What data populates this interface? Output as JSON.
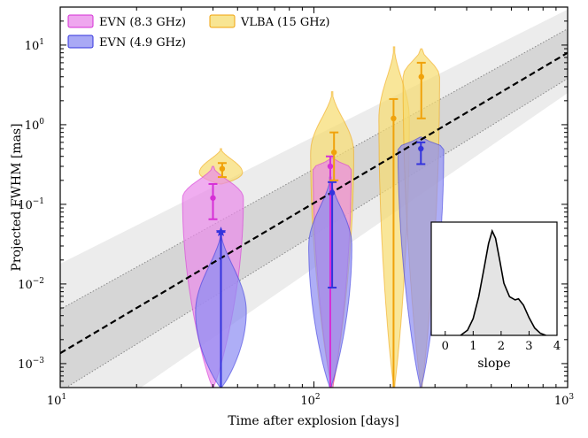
{
  "chart_data": {
    "type": "violin-scatter",
    "xlabel": "Time after explosion [days]",
    "ylabel": "Projected FWHM [mas]",
    "xscale": "log",
    "yscale": "log",
    "xlim": [
      10,
      1000
    ],
    "ylim": [
      0.0005,
      30
    ],
    "xticks": [
      {
        "value": 10,
        "base": "10",
        "exp": "1"
      },
      {
        "value": 100,
        "base": "10",
        "exp": "2"
      },
      {
        "value": 1000,
        "base": "10",
        "exp": "3"
      }
    ],
    "yticks": [
      {
        "value": 0.001,
        "base": "10",
        "exp": "−3"
      },
      {
        "value": 0.01,
        "base": "10",
        "exp": "−2"
      },
      {
        "value": 0.1,
        "base": "10",
        "exp": "−1"
      },
      {
        "value": 1,
        "base": "10",
        "exp": "0"
      },
      {
        "value": 10,
        "base": "10",
        "exp": "1"
      }
    ],
    "legend": {
      "placement": "top-left",
      "entries": [
        {
          "label": "EVN (8.3 GHz)",
          "series": "evn83"
        },
        {
          "label": "EVN (4.9 GHz)",
          "series": "evn49"
        },
        {
          "label": "VLBA (15 GHz)",
          "series": "vlba"
        }
      ]
    },
    "colors": {
      "evn83": "#d62fd6",
      "evn83_fill": "#e98ae9",
      "evn49": "#3333dd",
      "evn49_fill": "#8c8cf2",
      "vlba": "#f0a20a",
      "vlba_fill": "#f6dc6e",
      "fit": "#000000",
      "band_outer": "#ececec",
      "band_inner": "#d6d6d6",
      "band_edge": "#8a8a8a"
    },
    "fit": {
      "model": "power-law",
      "slope": 1.77,
      "points": [
        {
          "x": 10,
          "y": 0.00135
        },
        {
          "x": 1000,
          "y": 8.0
        }
      ],
      "band_inner": {
        "low": [
          {
            "x": 10,
            "y": 0.00045
          },
          {
            "x": 1000,
            "y": 3.8
          }
        ],
        "high": [
          {
            "x": 10,
            "y": 0.0048
          },
          {
            "x": 1000,
            "y": 16.0
          }
        ]
      },
      "band_outer": {
        "low": [
          {
            "x": 10,
            "y": 0.0001
          },
          {
            "x": 1000,
            "y": 2.5
          }
        ],
        "high": [
          {
            "x": 10,
            "y": 0.018
          },
          {
            "x": 1000,
            "y": 28.0
          }
        ]
      }
    },
    "points": [
      {
        "series": "evn83",
        "x": 40,
        "y": 0.12,
        "err_low": 0.065,
        "err_high": 0.18,
        "marker": "circle"
      },
      {
        "series": "evn49",
        "x": 43,
        "y": 0.045,
        "err_low": 0.0004,
        "err_high": 0.045,
        "marker": "star"
      },
      {
        "series": "vlba",
        "x": 43.5,
        "y": 0.28,
        "err_low": 0.22,
        "err_high": 0.33,
        "marker": "circle"
      },
      {
        "series": "evn83",
        "x": 116,
        "y": 0.3,
        "err_low": 0.0004,
        "err_high": 0.4,
        "marker": "circle"
      },
      {
        "series": "evn49",
        "x": 118,
        "y": 0.14,
        "err_low": 0.009,
        "err_high": 0.19,
        "marker": "circle"
      },
      {
        "series": "vlba",
        "x": 120,
        "y": 0.45,
        "err_low": 0.2,
        "err_high": 0.8,
        "marker": "circle"
      },
      {
        "series": "vlba",
        "x": 206,
        "y": 1.2,
        "err_low": 0.0004,
        "err_high": 2.1,
        "marker": "circle"
      },
      {
        "series": "evn49",
        "x": 264,
        "y": 0.5,
        "err_low": 0.32,
        "err_high": 0.6,
        "marker": "circle"
      },
      {
        "series": "vlba",
        "x": 265,
        "y": 4.0,
        "err_low": 1.2,
        "err_high": 6.0,
        "marker": "circle"
      }
    ],
    "violins": [
      {
        "series": "vlba",
        "x": 43,
        "y_top": 0.5,
        "y_bot": 0.18,
        "max_dex": 0.085,
        "mode": 0.25
      },
      {
        "series": "evn83",
        "x": 40,
        "y_top": 0.3,
        "y_bot": 0.0005,
        "max_dex": 0.12,
        "mode": 0.12
      },
      {
        "series": "evn49",
        "x": 43,
        "y_top": 0.045,
        "y_bot": 0.0005,
        "max_dex": 0.1,
        "mode": 0.0045
      },
      {
        "series": "vlba",
        "x": 118,
        "y_top": 2.6,
        "y_bot": 0.0005,
        "max_dex": 0.085,
        "mode": 0.45
      },
      {
        "series": "evn83",
        "x": 118,
        "y_top": 0.38,
        "y_bot": 0.0005,
        "max_dex": 0.075,
        "mode": 0.28
      },
      {
        "series": "evn49",
        "x": 116,
        "y_top": 0.22,
        "y_bot": 0.0005,
        "max_dex": 0.085,
        "mode": 0.03
      },
      {
        "series": "vlba",
        "x": 207,
        "y_top": 9.5,
        "y_bot": 0.0005,
        "max_dex": 0.06,
        "mode": 1.2
      },
      {
        "series": "vlba",
        "x": 265,
        "y_top": 9.0,
        "y_bot": 0.0005,
        "max_dex": 0.072,
        "mode": 4.0
      },
      {
        "series": "evn49",
        "x": 264,
        "y_top": 0.7,
        "y_bot": 0.0005,
        "max_dex": 0.09,
        "mode": 0.5
      }
    ],
    "inset": {
      "type": "area",
      "placement": "lower-right",
      "xlabel": "slope",
      "xlim": [
        -0.5,
        4
      ],
      "xticks": [
        0,
        1,
        2,
        3,
        4
      ],
      "curve": [
        {
          "x": 0.55,
          "y": 0
        },
        {
          "x": 0.8,
          "y": 0.05
        },
        {
          "x": 1.0,
          "y": 0.16
        },
        {
          "x": 1.2,
          "y": 0.37
        },
        {
          "x": 1.4,
          "y": 0.66
        },
        {
          "x": 1.55,
          "y": 0.88
        },
        {
          "x": 1.68,
          "y": 1.0
        },
        {
          "x": 1.8,
          "y": 0.93
        },
        {
          "x": 1.95,
          "y": 0.72
        },
        {
          "x": 2.1,
          "y": 0.5
        },
        {
          "x": 2.3,
          "y": 0.37
        },
        {
          "x": 2.5,
          "y": 0.34
        },
        {
          "x": 2.62,
          "y": 0.35
        },
        {
          "x": 2.8,
          "y": 0.29
        },
        {
          "x": 3.0,
          "y": 0.17
        },
        {
          "x": 3.2,
          "y": 0.07
        },
        {
          "x": 3.4,
          "y": 0.02
        },
        {
          "x": 3.6,
          "y": 0
        }
      ]
    }
  }
}
